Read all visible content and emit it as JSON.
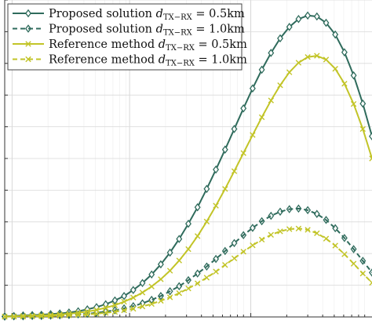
{
  "chart_data": {
    "type": "line",
    "title": "",
    "xlabel": "",
    "ylabel": "",
    "x_scale": "log",
    "grid": true,
    "legend_position": "top-left",
    "xlim": [
      0,
      1
    ],
    "ylim": [
      0,
      1
    ],
    "series": [
      {
        "name": "Proposed solution d_TX-RX = 0.5km",
        "color": "#2f6b5c",
        "line": "solid",
        "marker": "diamond",
        "points": [
          [
            0.0,
            0.002
          ],
          [
            0.025,
            0.003
          ],
          [
            0.05,
            0.005
          ],
          [
            0.075,
            0.006
          ],
          [
            0.1,
            0.007
          ],
          [
            0.125,
            0.009
          ],
          [
            0.15,
            0.011
          ],
          [
            0.175,
            0.014
          ],
          [
            0.2,
            0.018
          ],
          [
            0.225,
            0.024
          ],
          [
            0.25,
            0.031
          ],
          [
            0.275,
            0.04
          ],
          [
            0.3,
            0.052
          ],
          [
            0.325,
            0.066
          ],
          [
            0.35,
            0.085
          ],
          [
            0.375,
            0.107
          ],
          [
            0.4,
            0.134
          ],
          [
            0.425,
            0.166
          ],
          [
            0.45,
            0.203
          ],
          [
            0.475,
            0.246
          ],
          [
            0.5,
            0.294
          ],
          [
            0.525,
            0.346
          ],
          [
            0.55,
            0.404
          ],
          [
            0.575,
            0.465
          ],
          [
            0.6,
            0.528
          ],
          [
            0.625,
            0.593
          ],
          [
            0.65,
            0.658
          ],
          [
            0.675,
            0.721
          ],
          [
            0.7,
            0.78
          ],
          [
            0.725,
            0.833
          ],
          [
            0.75,
            0.879
          ],
          [
            0.775,
            0.915
          ],
          [
            0.8,
            0.94
          ],
          [
            0.825,
            0.951
          ],
          [
            0.85,
            0.948
          ],
          [
            0.875,
            0.928
          ],
          [
            0.9,
            0.891
          ],
          [
            0.925,
            0.835
          ],
          [
            0.95,
            0.762
          ],
          [
            0.975,
            0.673
          ],
          [
            1.0,
            0.57
          ]
        ]
      },
      {
        "name": "Proposed solution d_TX-RX = 1.0km",
        "color": "#2f6b5c",
        "line": "dashed",
        "marker": "diamond-open",
        "points": [
          [
            0.0,
            0.001
          ],
          [
            0.025,
            0.002
          ],
          [
            0.05,
            0.002
          ],
          [
            0.075,
            0.003
          ],
          [
            0.1,
            0.003
          ],
          [
            0.125,
            0.004
          ],
          [
            0.15,
            0.005
          ],
          [
            0.175,
            0.006
          ],
          [
            0.2,
            0.008
          ],
          [
            0.225,
            0.01
          ],
          [
            0.25,
            0.013
          ],
          [
            0.275,
            0.017
          ],
          [
            0.3,
            0.021
          ],
          [
            0.325,
            0.027
          ],
          [
            0.35,
            0.034
          ],
          [
            0.375,
            0.043
          ],
          [
            0.4,
            0.054
          ],
          [
            0.425,
            0.066
          ],
          [
            0.45,
            0.081
          ],
          [
            0.475,
            0.097
          ],
          [
            0.5,
            0.116
          ],
          [
            0.525,
            0.137
          ],
          [
            0.55,
            0.159
          ],
          [
            0.575,
            0.183
          ],
          [
            0.6,
            0.208
          ],
          [
            0.625,
            0.233
          ],
          [
            0.65,
            0.258
          ],
          [
            0.675,
            0.281
          ],
          [
            0.7,
            0.302
          ],
          [
            0.725,
            0.319
          ],
          [
            0.75,
            0.332
          ],
          [
            0.775,
            0.34
          ],
          [
            0.8,
            0.342
          ],
          [
            0.825,
            0.337
          ],
          [
            0.85,
            0.325
          ],
          [
            0.875,
            0.306
          ],
          [
            0.9,
            0.28
          ],
          [
            0.925,
            0.249
          ],
          [
            0.95,
            0.214
          ],
          [
            0.975,
            0.177
          ],
          [
            1.0,
            0.14
          ]
        ]
      },
      {
        "name": "Reference method d_TX-RX = 0.5km",
        "color": "#c2c427",
        "line": "solid",
        "marker": "x",
        "points": [
          [
            0.0,
            0.001
          ],
          [
            0.025,
            0.002
          ],
          [
            0.05,
            0.003
          ],
          [
            0.075,
            0.004
          ],
          [
            0.1,
            0.005
          ],
          [
            0.125,
            0.006
          ],
          [
            0.15,
            0.008
          ],
          [
            0.175,
            0.01
          ],
          [
            0.2,
            0.013
          ],
          [
            0.225,
            0.017
          ],
          [
            0.25,
            0.022
          ],
          [
            0.275,
            0.029
          ],
          [
            0.3,
            0.037
          ],
          [
            0.325,
            0.048
          ],
          [
            0.35,
            0.061
          ],
          [
            0.375,
            0.077
          ],
          [
            0.4,
            0.096
          ],
          [
            0.425,
            0.119
          ],
          [
            0.45,
            0.146
          ],
          [
            0.475,
            0.178
          ],
          [
            0.5,
            0.214
          ],
          [
            0.525,
            0.255
          ],
          [
            0.55,
            0.301
          ],
          [
            0.575,
            0.351
          ],
          [
            0.6,
            0.404
          ],
          [
            0.625,
            0.46
          ],
          [
            0.65,
            0.517
          ],
          [
            0.675,
            0.574
          ],
          [
            0.7,
            0.63
          ],
          [
            0.725,
            0.683
          ],
          [
            0.75,
            0.731
          ],
          [
            0.775,
            0.772
          ],
          [
            0.8,
            0.802
          ],
          [
            0.825,
            0.82
          ],
          [
            0.85,
            0.824
          ],
          [
            0.875,
            0.812
          ],
          [
            0.9,
            0.783
          ],
          [
            0.925,
            0.736
          ],
          [
            0.95,
            0.672
          ],
          [
            0.975,
            0.593
          ],
          [
            1.0,
            0.5
          ]
        ]
      },
      {
        "name": "Reference method d_TX-RX = 1.0km",
        "color": "#c2c427",
        "line": "dashed",
        "marker": "x",
        "points": [
          [
            0.0,
            0.001
          ],
          [
            0.025,
            0.001
          ],
          [
            0.05,
            0.001
          ],
          [
            0.075,
            0.002
          ],
          [
            0.1,
            0.002
          ],
          [
            0.125,
            0.003
          ],
          [
            0.15,
            0.004
          ],
          [
            0.175,
            0.005
          ],
          [
            0.2,
            0.006
          ],
          [
            0.225,
            0.008
          ],
          [
            0.25,
            0.01
          ],
          [
            0.275,
            0.013
          ],
          [
            0.3,
            0.016
          ],
          [
            0.325,
            0.021
          ],
          [
            0.35,
            0.026
          ],
          [
            0.375,
            0.033
          ],
          [
            0.4,
            0.041
          ],
          [
            0.425,
            0.051
          ],
          [
            0.45,
            0.062
          ],
          [
            0.475,
            0.075
          ],
          [
            0.5,
            0.09
          ],
          [
            0.525,
            0.106
          ],
          [
            0.55,
            0.124
          ],
          [
            0.575,
            0.143
          ],
          [
            0.6,
            0.164
          ],
          [
            0.625,
            0.185
          ],
          [
            0.65,
            0.206
          ],
          [
            0.675,
            0.226
          ],
          [
            0.7,
            0.244
          ],
          [
            0.725,
            0.259
          ],
          [
            0.75,
            0.27
          ],
          [
            0.775,
            0.277
          ],
          [
            0.8,
            0.279
          ],
          [
            0.825,
            0.275
          ],
          [
            0.85,
            0.264
          ],
          [
            0.875,
            0.247
          ],
          [
            0.9,
            0.225
          ],
          [
            0.925,
            0.198
          ],
          [
            0.95,
            0.168
          ],
          [
            0.975,
            0.137
          ],
          [
            1.0,
            0.108
          ]
        ]
      }
    ]
  },
  "legend": {
    "entries": [
      {
        "label": "Proposed solution ",
        "var": "d",
        "sub": "TX−RX",
        "value": " = 0.5km"
      },
      {
        "label": "Proposed solution ",
        "var": "d",
        "sub": "TX−RX",
        "value": " = 1.0km"
      },
      {
        "label": "Reference method ",
        "var": "d",
        "sub": "TX−RX",
        "value": " = 0.5km"
      },
      {
        "label": "Reference method ",
        "var": "d",
        "sub": "TX−RX",
        "value": " = 1.0km"
      }
    ]
  }
}
